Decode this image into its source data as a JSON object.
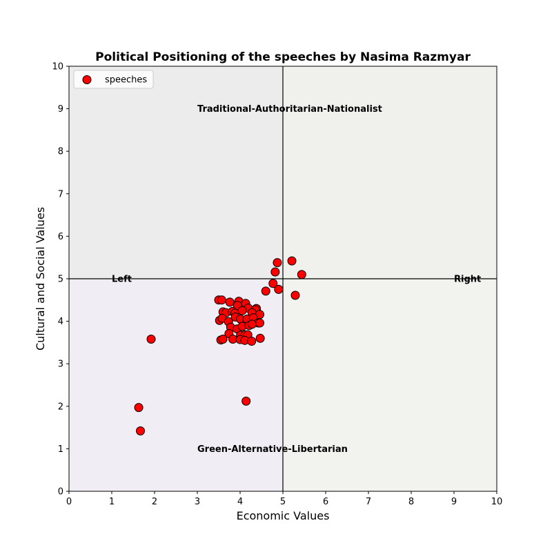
{
  "chart_data": {
    "type": "scatter",
    "title": "Political Positioning of the speeches by Nasima Razmyar",
    "xlabel": "Economic Values",
    "ylabel": "Cultural and Social Values",
    "xlim": [
      0,
      10
    ],
    "ylim": [
      0,
      10
    ],
    "xticks": [
      0,
      1,
      2,
      3,
      4,
      5,
      6,
      7,
      8,
      9,
      10
    ],
    "yticks": [
      0,
      1,
      2,
      3,
      4,
      5,
      6,
      7,
      8,
      9,
      10
    ],
    "grid": false,
    "legend": {
      "position": "top-left",
      "entries": [
        "speeches"
      ]
    },
    "divider": {
      "x": 5,
      "y": 5
    },
    "quadrants": [
      {
        "name": "top-left",
        "x_range": [
          0,
          5
        ],
        "y_range": [
          5,
          10
        ],
        "color": "#ececec"
      },
      {
        "name": "top-right",
        "x_range": [
          5,
          10
        ],
        "y_range": [
          5,
          10
        ],
        "color": "#f0f1ed"
      },
      {
        "name": "bottom-left",
        "x_range": [
          0,
          5
        ],
        "y_range": [
          0,
          5
        ],
        "color": "#f0eef4"
      },
      {
        "name": "bottom-right",
        "x_range": [
          5,
          10
        ],
        "y_range": [
          0,
          5
        ],
        "color": "#f2f2ee"
      }
    ],
    "annotations": [
      {
        "text": "Traditional-Authoritarian-Nationalist",
        "x": 3,
        "y": 9,
        "anchor": "start"
      },
      {
        "text": "Green-Alternative-Libertarian",
        "x": 3,
        "y": 1,
        "anchor": "start"
      },
      {
        "text": "Left",
        "x": 1,
        "y": 5,
        "anchor": "start"
      },
      {
        "text": "Right",
        "x": 9,
        "y": 5,
        "anchor": "start"
      }
    ],
    "series": [
      {
        "name": "speeches",
        "color": "#ff0000",
        "edgecolor": "#000000",
        "points": [
          [
            1.92,
            3.58
          ],
          [
            1.63,
            1.97
          ],
          [
            1.67,
            1.42
          ],
          [
            4.14,
            2.12
          ],
          [
            4.87,
            5.38
          ],
          [
            5.21,
            5.42
          ],
          [
            5.44,
            5.1
          ],
          [
            4.82,
            5.16
          ],
          [
            4.77,
            4.89
          ],
          [
            4.6,
            4.71
          ],
          [
            4.9,
            4.75
          ],
          [
            5.29,
            4.61
          ],
          [
            3.5,
            4.5
          ],
          [
            3.57,
            4.5
          ],
          [
            3.76,
            4.45
          ],
          [
            3.97,
            4.47
          ],
          [
            4.13,
            4.42
          ],
          [
            3.94,
            4.37
          ],
          [
            4.19,
            4.31
          ],
          [
            4.38,
            4.3
          ],
          [
            4.36,
            4.27
          ],
          [
            3.6,
            4.22
          ],
          [
            3.67,
            4.2
          ],
          [
            3.82,
            4.23
          ],
          [
            3.88,
            4.19
          ],
          [
            4.05,
            4.25
          ],
          [
            4.28,
            4.2
          ],
          [
            4.46,
            4.16
          ],
          [
            3.52,
            4.02
          ],
          [
            3.58,
            4.07
          ],
          [
            3.73,
            3.99
          ],
          [
            3.89,
            4.1
          ],
          [
            4.01,
            4.05
          ],
          [
            4.16,
            4.05
          ],
          [
            4.31,
            4.08
          ],
          [
            4.42,
            3.96
          ],
          [
            4.46,
            3.96
          ],
          [
            3.78,
            3.86
          ],
          [
            3.93,
            3.82
          ],
          [
            4.05,
            3.88
          ],
          [
            4.21,
            3.9
          ],
          [
            4.28,
            3.93
          ],
          [
            3.74,
            3.71
          ],
          [
            4.01,
            3.67
          ],
          [
            4.12,
            3.68
          ],
          [
            4.18,
            3.68
          ],
          [
            3.55,
            3.56
          ],
          [
            3.6,
            3.58
          ],
          [
            3.83,
            3.58
          ],
          [
            4.0,
            3.57
          ],
          [
            4.11,
            3.55
          ],
          [
            4.27,
            3.53
          ],
          [
            4.47,
            3.6
          ]
        ]
      }
    ]
  }
}
